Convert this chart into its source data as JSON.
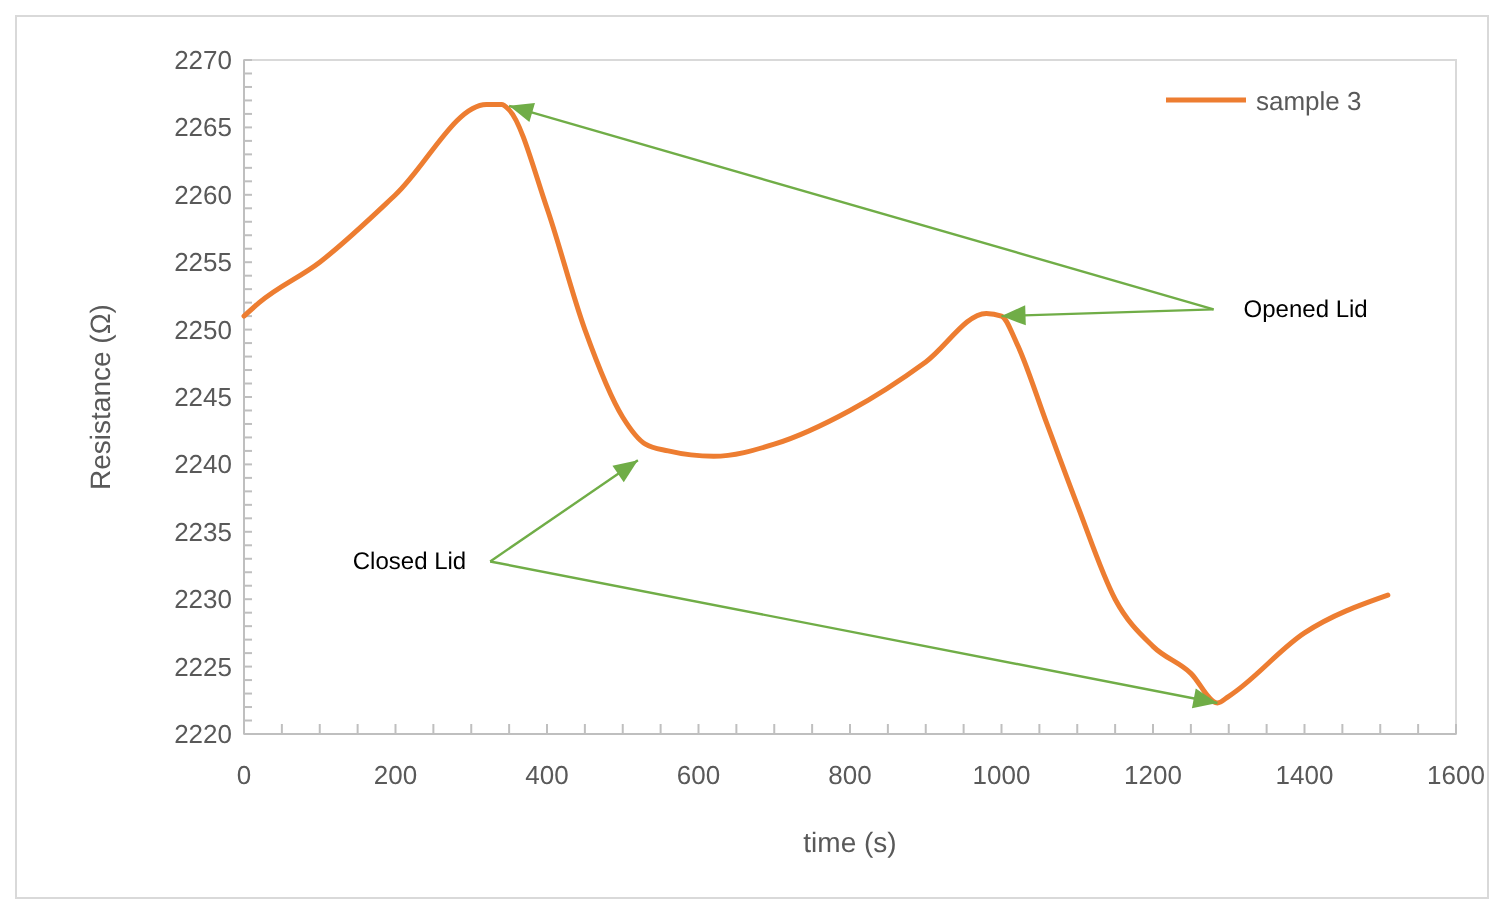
{
  "chart_data": {
    "type": "line",
    "xlabel": "time (s)",
    "ylabel": "Resistance (Ω)",
    "xlim": [
      0,
      1600
    ],
    "xticks": [
      0,
      200,
      400,
      600,
      800,
      1000,
      1200,
      1400,
      1600
    ],
    "ylim": [
      2220,
      2270
    ],
    "yticks": [
      2220,
      2225,
      2230,
      2235,
      2240,
      2245,
      2250,
      2255,
      2260,
      2265,
      2270
    ],
    "grid": false,
    "legend": "top right",
    "marker": "none",
    "line_style": "solid",
    "annotations": [
      {
        "text": "Opened Lid",
        "x": 1000,
        "y": 2251
      },
      {
        "text": "Closed Lid",
        "x": 1285,
        "y": 2222.3
      }
    ],
    "series": [
      {
        "name": "sample 3",
        "color": "#ed7d31",
        "x": [
          0,
          20,
          100,
          200,
          320,
          340,
          350,
          400,
          450,
          500,
          530,
          560,
          620,
          700,
          800,
          900,
          980,
          1000,
          1020,
          1060,
          1100,
          1150,
          1200,
          1250,
          1285,
          1300,
          1400,
          1510
        ],
        "values": [
          2251,
          2252,
          2255,
          2260,
          2266.7,
          2266.7,
          2266.3,
          2259,
          2250,
          2243.5,
          2241.5,
          2241,
          2240.6,
          2241.5,
          2244,
          2247.6,
          2251.2,
          2251,
          2249,
          2243,
          2237,
          2230,
          2226.5,
          2224.5,
          2222.3,
          2222.8,
          2227.5,
          2230.3
        ]
      }
    ]
  }
}
